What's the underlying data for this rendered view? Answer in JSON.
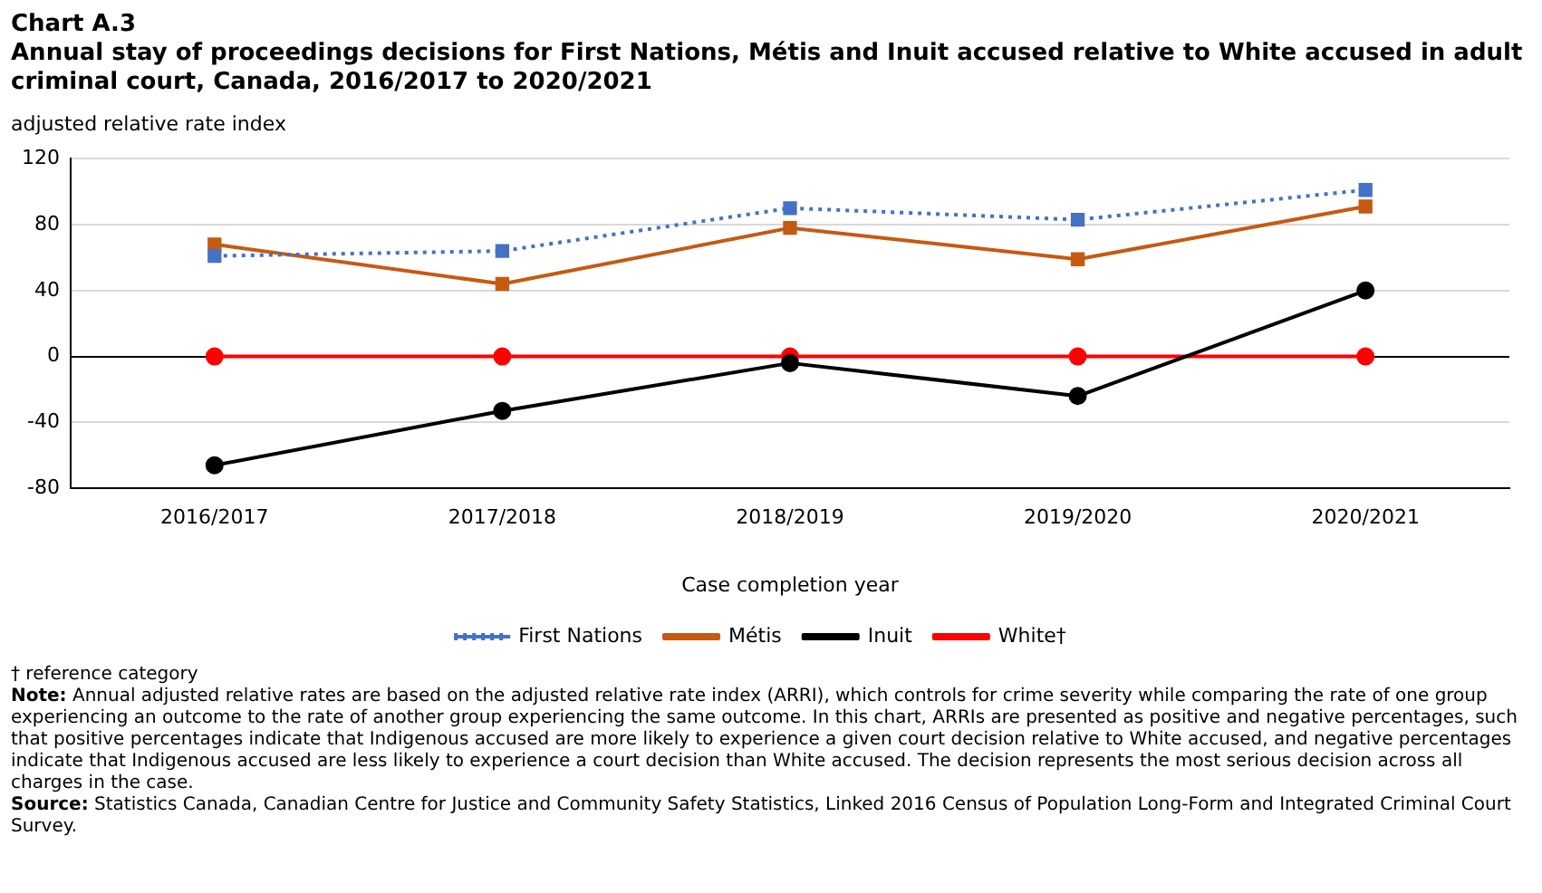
{
  "chart_data": {
    "type": "line",
    "title": "Chart A.3",
    "subtitle": "Annual stay of proceedings decisions for First Nations, Métis and Inuit accused relative to White accused in adult criminal court, Canada, 2016/2017 to 2020/2021",
    "ylabel": "adjusted relative rate index",
    "xlabel": "Case completion year",
    "categories": [
      "2016/2017",
      "2017/2018",
      "2018/2019",
      "2019/2020",
      "2020/2021"
    ],
    "series": [
      {
        "name": "First Nations",
        "color": "#4472c4",
        "values": [
          61,
          64,
          90,
          83,
          101
        ],
        "marker": "square",
        "line_style": "dotted"
      },
      {
        "name": "Métis",
        "color": "#c55a11",
        "values": [
          68,
          44,
          78,
          59,
          91
        ],
        "marker": "square",
        "line_style": "solid"
      },
      {
        "name": "Inuit",
        "color": "#000000",
        "values": [
          -66,
          -33,
          -4,
          -24,
          40
        ],
        "marker": "circle",
        "line_style": "solid"
      },
      {
        "name": "White†",
        "color": "#ff0000",
        "values": [
          0,
          0,
          0,
          0,
          0
        ],
        "marker": "circle",
        "line_style": "solid"
      }
    ],
    "ylim": [
      -80,
      120
    ],
    "yticks": [
      -80,
      -40,
      0,
      40,
      80,
      120
    ],
    "grid": "y",
    "legend": "bottom",
    "annotations": [
      "† reference category",
      "Note: Annual adjusted relative rates are based on the adjusted relative rate index (ARRI), which controls for crime severity while comparing the rate of one group experiencing an outcome to the rate of another group experiencing the same outcome. In this chart, ARRIs are presented as positive and negative percentages, such that positive percentages indicate that Indigenous accused are more likely to experience a given court decision relative to White accused, and negative percentages indicate that Indigenous accused are less likely to experience a court decision than White accused. The decision represents the most serious decision across all charges in the case.",
      "Source: Statistics Canada, Canadian Centre for Justice and Community Safety Statistics, Linked 2016 Census of Population Long-Form and Integrated Criminal Court Survey."
    ]
  }
}
